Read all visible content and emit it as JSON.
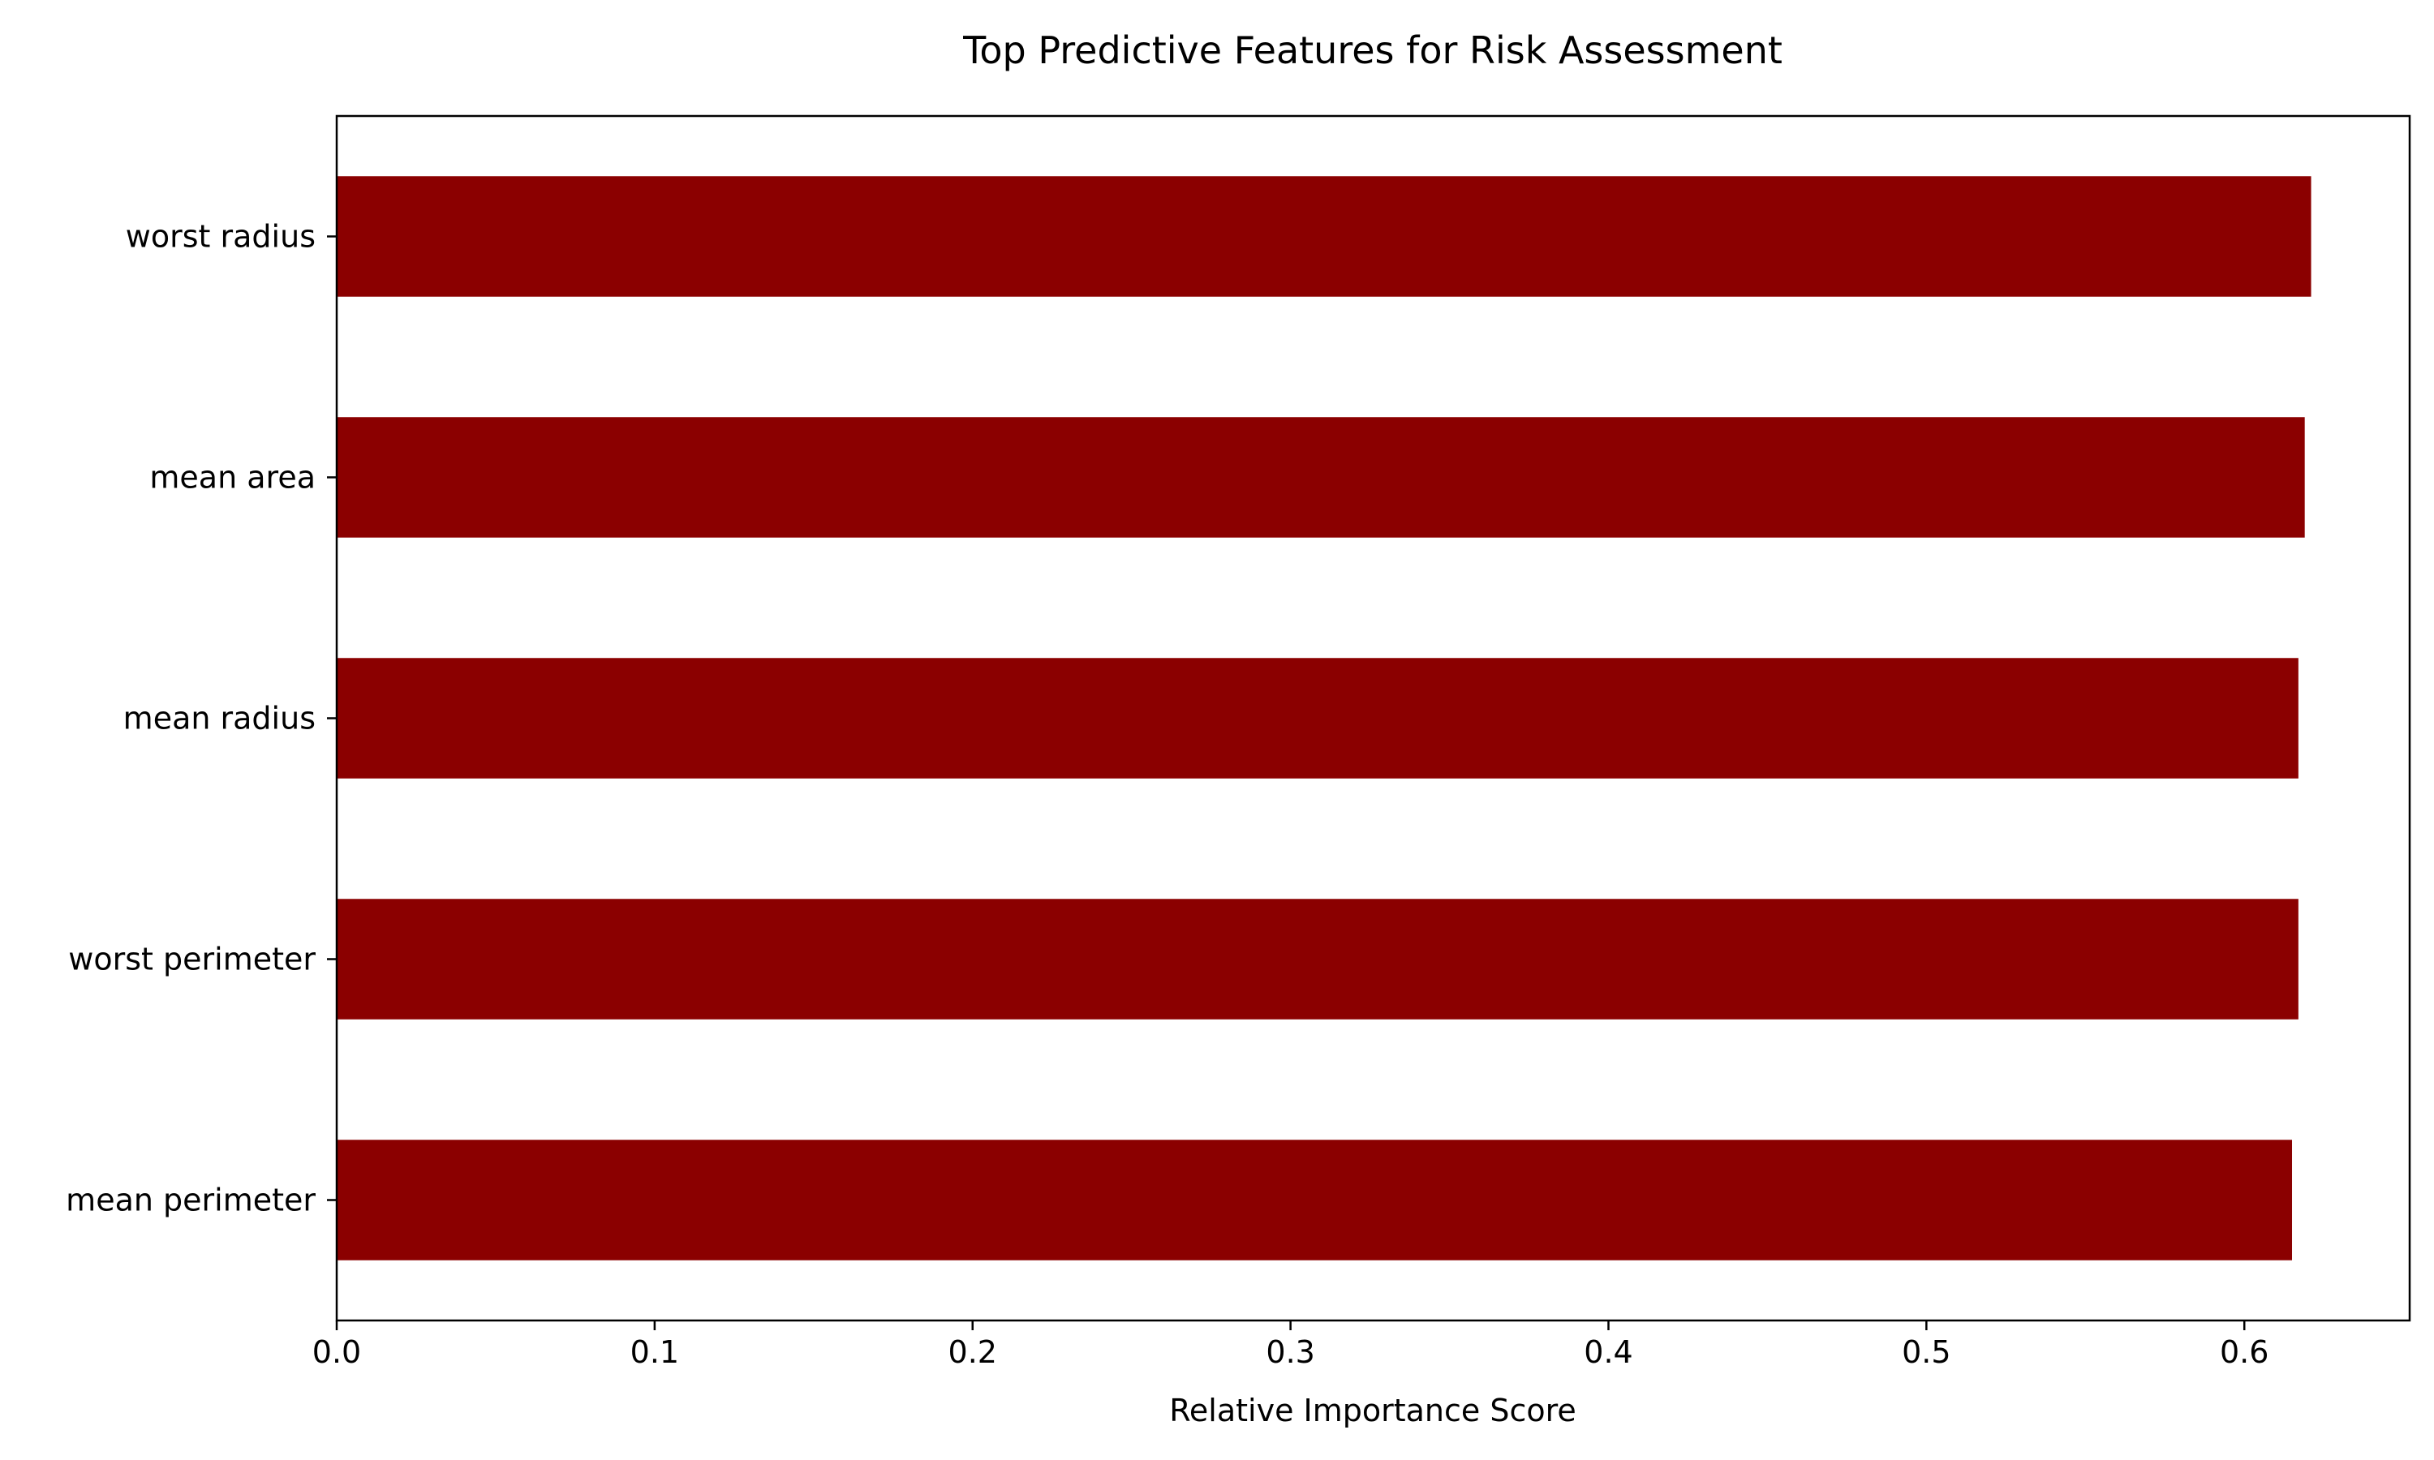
{
  "chart_data": {
    "type": "bar",
    "orientation": "horizontal",
    "title": "Top Predictive Features for Risk Assessment",
    "xlabel": "Relative Importance Score",
    "ylabel": "",
    "categories": [
      "worst radius",
      "mean area",
      "mean radius",
      "worst perimeter",
      "mean perimeter"
    ],
    "values": [
      0.621,
      0.619,
      0.617,
      0.617,
      0.615
    ],
    "xlim": [
      0,
      0.652
    ],
    "xticks": [
      "0.0",
      "0.1",
      "0.2",
      "0.3",
      "0.4",
      "0.5",
      "0.6"
    ],
    "bar_color": "#8b0000",
    "grid": false,
    "legend": "none"
  }
}
